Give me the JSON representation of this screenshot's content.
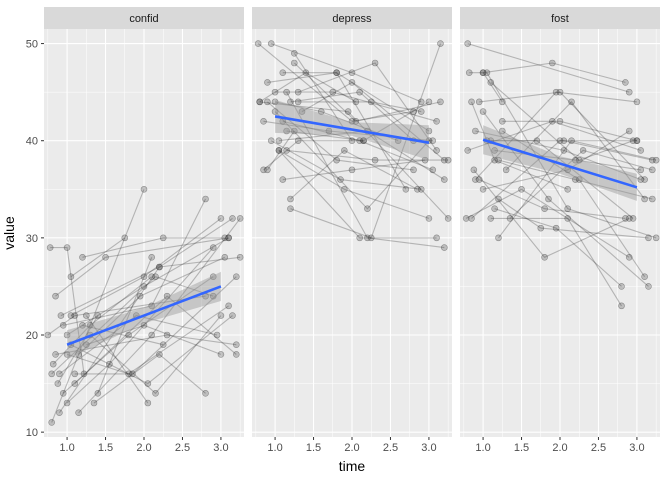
{
  "chart_data": {
    "type": "line",
    "facets": [
      "confid",
      "depress",
      "fost"
    ],
    "xlabel": "time",
    "ylabel": "value",
    "xlim": [
      0.7,
      3.3
    ],
    "ylim": [
      9.5,
      51.5
    ],
    "x_ticks": [
      1.0,
      1.5,
      2.0,
      2.5,
      3.0
    ],
    "x_tick_labels": [
      "1.0",
      "1.5",
      "2.0",
      "2.5",
      "3.0"
    ],
    "y_ticks": [
      10,
      20,
      30,
      40,
      50
    ],
    "y_tick_labels": [
      "10",
      "20",
      "30",
      "40",
      "50"
    ],
    "grid": true,
    "colors": {
      "panel_bg": "#ebebeb",
      "strip_bg": "#d9d9d9",
      "grid": "#ffffff",
      "trend": "#3366ff",
      "ribbon": "#999999",
      "subject": "#333333"
    },
    "panels": [
      {
        "name": "confid",
        "trend": {
          "x": [
            1.0,
            3.0
          ],
          "y": [
            19.0,
            25.0
          ]
        },
        "ribbon": {
          "x": [
            1.0,
            2.0,
            3.0
          ],
          "lower": [
            17.5,
            21.2,
            23.5
          ],
          "upper": [
            20.5,
            22.8,
            26.5
          ]
        },
        "subjects": [
          {
            "x": [
              0.78,
              1.0,
              1.22
            ],
            "y": [
              29,
              29,
              16
            ]
          },
          {
            "x": [
              0.8,
              2.0
            ],
            "y": [
              11,
              35
            ]
          },
          {
            "x": [
              0.82,
              1.3,
              2.1
            ],
            "y": [
              17,
              21,
              26
            ]
          },
          {
            "x": [
              0.85,
              1.5,
              3.1
            ],
            "y": [
              24,
              28,
              30
            ]
          },
          {
            "x": [
              0.88,
              1.4
            ],
            "y": [
              15,
              22
            ]
          },
          {
            "x": [
              0.9,
              2.2,
              3.15
            ],
            "y": [
              12,
              27,
              32
            ]
          },
          {
            "x": [
              0.95,
              1.8,
              2.9
            ],
            "y": [
              14,
              20,
              26
            ]
          },
          {
            "x": [
              1.0,
              1.55,
              2.9
            ],
            "y": [
              13,
              17,
              29
            ]
          },
          {
            "x": [
              1.05,
              2.0,
              3.0
            ],
            "y": [
              22,
              26,
              32
            ]
          },
          {
            "x": [
              1.1,
              2.3,
              3.2
            ],
            "y": [
              15,
              24,
              18
            ]
          },
          {
            "x": [
              1.15,
              2.1,
              3.25
            ],
            "y": [
              12,
              20,
              32
            ]
          },
          {
            "x": [
              1.2,
              2.25,
              3.05
            ],
            "y": [
              28,
              30,
              30
            ]
          },
          {
            "x": [
              1.25,
              2.05
            ],
            "y": [
              22,
              13
            ]
          },
          {
            "x": [
              0.95,
              2.1,
              2.8
            ],
            "y": [
              21,
              23,
              34
            ]
          },
          {
            "x": [
              1.0,
              1.8,
              3.1
            ],
            "y": [
              18,
              16,
              23
            ]
          },
          {
            "x": [
              1.1,
              1.85,
              3.2
            ],
            "y": [
              16,
              16,
              26
            ]
          },
          {
            "x": [
              1.3,
              2.15,
              3.0
            ],
            "y": [
              20,
              14,
              22
            ]
          },
          {
            "x": [
              1.35,
              2.2,
              2.8
            ],
            "y": [
              13,
              18,
              14
            ]
          },
          {
            "x": [
              1.0,
              2.0,
              3.1
            ],
            "y": [
              20,
              25,
              30
            ]
          },
          {
            "x": [
              0.9,
              1.9,
              2.95
            ],
            "y": [
              16,
              22,
              20
            ]
          },
          {
            "x": [
              1.2,
              2.25
            ],
            "y": [
              21,
              19
            ]
          },
          {
            "x": [
              1.05,
              1.75
            ],
            "y": [
              26,
              30
            ]
          },
          {
            "x": [
              1.15,
              1.95,
              3.05
            ],
            "y": [
              18,
              24,
              28
            ]
          },
          {
            "x": [
              0.75,
              1.1,
              2.8
            ],
            "y": [
              20,
              22,
              24
            ]
          },
          {
            "x": [
              1.4,
              2.1
            ],
            "y": [
              14,
              28
            ]
          },
          {
            "x": [
              0.85,
              2.3,
              3.2
            ],
            "y": [
              18,
              20,
              19
            ]
          },
          {
            "x": [
              1.25,
              2.0,
              3.0
            ],
            "y": [
              19,
              21,
              18
            ]
          },
          {
            "x": [
              0.8,
              2.15,
              2.9
            ],
            "y": [
              16,
              26,
              24
            ]
          },
          {
            "x": [
              1.05,
              2.05,
              3.15
            ],
            "y": [
              19,
              15,
              22
            ]
          },
          {
            "x": [
              0.92,
              2.2,
              3.25
            ],
            "y": [
              22,
              27,
              28
            ]
          }
        ]
      },
      {
        "name": "depress",
        "trend": {
          "x": [
            1.0,
            3.0
          ],
          "y": [
            42.5,
            39.8
          ]
        },
        "ribbon": {
          "x": [
            1.0,
            2.0,
            3.0
          ],
          "lower": [
            40.8,
            40.5,
            38.0
          ],
          "upper": [
            44.2,
            41.9,
            41.6
          ]
        },
        "subjects": [
          {
            "x": [
              0.78,
              2.0,
              2.8
            ],
            "y": [
              50,
              42,
              43
            ]
          },
          {
            "x": [
              0.8,
              1.4,
              2.05
            ],
            "y": [
              44,
              47,
              44
            ]
          },
          {
            "x": [
              0.85,
              1.3,
              2.15
            ],
            "y": [
              37,
              40,
              40
            ]
          },
          {
            "x": [
              0.9,
              1.25
            ],
            "y": [
              37,
              41
            ]
          },
          {
            "x": [
              0.95,
              2.0,
              2.9
            ],
            "y": [
              50,
              47,
              44
            ]
          },
          {
            "x": [
              1.0,
              1.6,
              2.6
            ],
            "y": [
              44,
              43,
              40
            ]
          },
          {
            "x": [
              1.05,
              1.9,
              3.0
            ],
            "y": [
              39,
              35,
              32
            ]
          },
          {
            "x": [
              1.1,
              1.8,
              2.7
            ],
            "y": [
              47,
              47,
              35
            ]
          },
          {
            "x": [
              1.15,
              2.2,
              3.2
            ],
            "y": [
              45,
              30,
              29
            ]
          },
          {
            "x": [
              1.2,
              2.25,
              3.15
            ],
            "y": [
              33,
              30,
              50
            ]
          },
          {
            "x": [
              1.25,
              2.0
            ],
            "y": [
              49,
              40
            ]
          },
          {
            "x": [
              1.05,
              2.1,
              3.1
            ],
            "y": [
              39,
              30,
              30
            ]
          },
          {
            "x": [
              1.0,
              2.2,
              3.0
            ],
            "y": [
              43,
              33,
              40
            ]
          },
          {
            "x": [
              0.9,
              1.8,
              2.8
            ],
            "y": [
              44,
              38,
              37
            ]
          },
          {
            "x": [
              1.3,
              2.3,
              3.1
            ],
            "y": [
              45,
              48,
              39
            ]
          },
          {
            "x": [
              1.35,
              2.0,
              3.2
            ],
            "y": [
              43,
              46,
              38
            ]
          },
          {
            "x": [
              0.95,
              1.85,
              2.9
            ],
            "y": [
              40,
              36,
              35
            ]
          },
          {
            "x": [
              1.1,
              2.1,
              3.05
            ],
            "y": [
              42,
              40,
              37
            ]
          },
          {
            "x": [
              0.8,
              1.95,
              3.25
            ],
            "y": [
              44,
              43,
              32
            ]
          },
          {
            "x": [
              1.15,
              2.15,
              3.0
            ],
            "y": [
              41,
              40,
              44
            ]
          },
          {
            "x": [
              1.2,
              1.9,
              2.85
            ],
            "y": [
              34,
              39,
              35
            ]
          },
          {
            "x": [
              1.0,
              1.75,
              3.1
            ],
            "y": [
              45,
              45,
              42
            ]
          },
          {
            "x": [
              1.25,
              2.05,
              3.15
            ],
            "y": [
              48,
              42,
              44
            ]
          },
          {
            "x": [
              0.85,
              1.7,
              3.05
            ],
            "y": [
              42,
              41,
              40
            ]
          },
          {
            "x": [
              1.05,
              2.2,
              3.2
            ],
            "y": [
              40,
              41,
              36
            ]
          },
          {
            "x": [
              1.1,
              2.0,
              2.95
            ],
            "y": [
              36,
              37,
              38
            ]
          },
          {
            "x": [
              1.3,
              2.25,
              2.9
            ],
            "y": [
              44,
              44,
              43
            ]
          },
          {
            "x": [
              0.9,
              1.8,
              3.0
            ],
            "y": [
              46,
              47,
              41
            ]
          },
          {
            "x": [
              1.2,
              2.1,
              2.8
            ],
            "y": [
              44,
              45,
              40
            ]
          },
          {
            "x": [
              1.15,
              2.3,
              3.25
            ],
            "y": [
              39,
              38,
              38
            ]
          }
        ]
      },
      {
        "name": "fost",
        "trend": {
          "x": [
            1.0,
            3.0
          ],
          "y": [
            40.1,
            35.2
          ]
        },
        "ribbon": {
          "x": [
            1.0,
            2.0,
            3.0
          ],
          "lower": [
            38.6,
            36.6,
            33.8
          ],
          "upper": [
            41.6,
            38.4,
            36.6
          ]
        },
        "subjects": [
          {
            "x": [
              0.8,
              2.9
            ],
            "y": [
              50,
              45
            ]
          },
          {
            "x": [
              0.82,
              1.0,
              1.25
            ],
            "y": [
              47,
              47,
              44
            ]
          },
          {
            "x": [
              0.85,
              1.15,
              2.1
            ],
            "y": [
              44,
              38,
              35
            ]
          },
          {
            "x": [
              0.88,
              1.8,
              2.9
            ],
            "y": [
              37,
              28,
              32
            ]
          },
          {
            "x": [
              0.9,
              1.95,
              3.0
            ],
            "y": [
              36,
              45,
              44
            ]
          },
          {
            "x": [
              0.95,
              2.0,
              3.1
            ],
            "y": [
              44,
              45,
              36
            ]
          },
          {
            "x": [
              1.0,
              1.9,
              2.85
            ],
            "y": [
              47,
              48,
              46
            ]
          },
          {
            "x": [
              1.05,
              2.05,
              3.2
            ],
            "y": [
              40,
              40,
              38
            ]
          },
          {
            "x": [
              1.1,
              2.1,
              2.8
            ],
            "y": [
              32,
              32,
              23
            ]
          },
          {
            "x": [
              1.15,
              2.2,
              3.05
            ],
            "y": [
              39,
              38,
              37
            ]
          },
          {
            "x": [
              1.2,
              2.15,
              3.25
            ],
            "y": [
              30,
              40,
              38
            ]
          },
          {
            "x": [
              1.25,
              2.25,
              3.1
            ],
            "y": [
              41,
              36,
              26
            ]
          },
          {
            "x": [
              0.78,
              1.5,
              2.9
            ],
            "y": [
              32,
              35,
              28
            ]
          },
          {
            "x": [
              0.85,
              2.0,
              3.0
            ],
            "y": [
              32,
              40,
              40
            ]
          },
          {
            "x": [
              1.0,
              1.85,
              3.15
            ],
            "y": [
              43,
              34,
              25
            ]
          },
          {
            "x": [
              1.05,
              2.1,
              3.25
            ],
            "y": [
              47,
              33,
              30
            ]
          },
          {
            "x": [
              1.1,
              1.7,
              2.95
            ],
            "y": [
              40,
              40,
              32
            ]
          },
          {
            "x": [
              0.9,
              2.05,
              3.05
            ],
            "y": [
              41,
              39,
              36
            ]
          },
          {
            "x": [
              1.15,
              1.95,
              2.8
            ],
            "y": [
              33,
              31,
              25
            ]
          },
          {
            "x": [
              1.2,
              2.2,
              3.2
            ],
            "y": [
              38,
              36,
              34
            ]
          },
          {
            "x": [
              1.25,
              2.0,
              3.0
            ],
            "y": [
              42,
              42,
              40
            ]
          },
          {
            "x": [
              0.95,
              1.8,
              2.85
            ],
            "y": [
              36,
              33,
              32
            ]
          },
          {
            "x": [
              1.3,
              2.15,
              3.1
            ],
            "y": [
              37,
              44,
              34
            ]
          },
          {
            "x": [
              1.0,
              2.1,
              2.9
            ],
            "y": [
              35,
              37,
              41
            ]
          },
          {
            "x": [
              1.35,
              2.3,
              3.2
            ],
            "y": [
              32,
              39,
              37
            ]
          },
          {
            "x": [
              0.8,
              1.9,
              3.05
            ],
            "y": [
              39,
              42,
              39
            ]
          },
          {
            "x": [
              1.1,
              2.25,
              2.95
            ],
            "y": [
              46,
              38,
              40
            ]
          },
          {
            "x": [
              1.2,
              1.75,
              3.15
            ],
            "y": [
              34,
              31,
              30
            ]
          }
        ]
      }
    ]
  }
}
